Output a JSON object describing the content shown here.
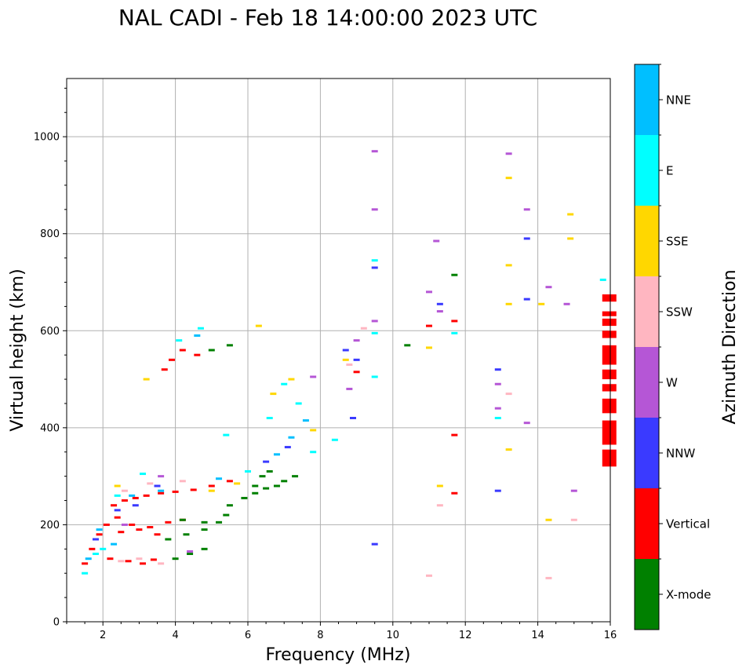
{
  "chart_data": {
    "type": "scatter",
    "title": "NAL CADI - Feb 18 14:00:00 2023 UTC",
    "xlabel": "Frequency (MHz)",
    "ylabel": "Virtual height (km)",
    "xlim": [
      1,
      16
    ],
    "ylim": [
      0,
      1120
    ],
    "x_ticks": [
      2,
      4,
      6,
      8,
      10,
      12,
      14,
      16
    ],
    "y_ticks": [
      0,
      200,
      400,
      600,
      800,
      1000
    ],
    "grid": true,
    "colorbar": {
      "label": "Azimuth Direction",
      "categories": [
        {
          "name": "X-mode",
          "color": "#008000"
        },
        {
          "name": "Vertical",
          "color": "#ff0000"
        },
        {
          "name": "NNW",
          "color": "#3a3aff"
        },
        {
          "name": "W",
          "color": "#b556d6"
        },
        {
          "name": "SSW",
          "color": "#ffb6c1"
        },
        {
          "name": "SSE",
          "color": "#ffd700"
        },
        {
          "name": "E",
          "color": "#00ffff"
        },
        {
          "name": "NNE",
          "color": "#00bfff"
        }
      ]
    },
    "series": [
      {
        "name": "Vertical",
        "points": [
          [
            1.5,
            120
          ],
          [
            1.7,
            150
          ],
          [
            1.9,
            180
          ],
          [
            2.1,
            200
          ],
          [
            2.3,
            240
          ],
          [
            2.6,
            250
          ],
          [
            2.9,
            255
          ],
          [
            3.2,
            260
          ],
          [
            3.6,
            265
          ],
          [
            4,
            268
          ],
          [
            4.5,
            272
          ],
          [
            5,
            280
          ],
          [
            5.5,
            290
          ],
          [
            2.4,
            215
          ],
          [
            2.8,
            200
          ],
          [
            3.3,
            195
          ],
          [
            3.8,
            205
          ],
          [
            4.2,
            210
          ],
          [
            2.5,
            185
          ],
          [
            3.0,
            190
          ],
          [
            3.5,
            180
          ],
          [
            2.2,
            130
          ],
          [
            2.7,
            125
          ],
          [
            3.1,
            120
          ],
          [
            3.4,
            128
          ],
          [
            3.7,
            520
          ],
          [
            3.9,
            540
          ],
          [
            4.2,
            560
          ],
          [
            4.6,
            550
          ],
          [
            11.0,
            610
          ],
          [
            11.7,
            620
          ],
          [
            11.7,
            385
          ],
          [
            11.7,
            265
          ],
          [
            9.0,
            515
          ]
        ]
      },
      {
        "name": "X-mode",
        "points": [
          [
            4.0,
            130
          ],
          [
            4.4,
            140
          ],
          [
            4.8,
            150
          ],
          [
            3.8,
            170
          ],
          [
            4.3,
            180
          ],
          [
            4.8,
            190
          ],
          [
            5.2,
            205
          ],
          [
            5.4,
            220
          ],
          [
            4.2,
            210
          ],
          [
            4.8,
            205
          ],
          [
            5.5,
            240
          ],
          [
            5.9,
            255
          ],
          [
            6.2,
            280
          ],
          [
            6.4,
            300
          ],
          [
            6.6,
            310
          ],
          [
            6.8,
            280
          ],
          [
            7.0,
            290
          ],
          [
            7.3,
            300
          ],
          [
            5.0,
            560
          ],
          [
            5.5,
            570
          ],
          [
            6.2,
            265
          ],
          [
            6.5,
            275
          ],
          [
            10.4,
            570
          ],
          [
            11.7,
            715
          ]
        ]
      },
      {
        "name": "NNW",
        "points": [
          [
            1.8,
            170
          ],
          [
            2.4,
            230
          ],
          [
            2.9,
            240
          ],
          [
            3.5,
            280
          ],
          [
            6.5,
            330
          ],
          [
            7.1,
            360
          ],
          [
            8.7,
            560
          ],
          [
            8.9,
            420
          ],
          [
            9.0,
            540
          ],
          [
            9.5,
            160
          ],
          [
            9.5,
            730
          ],
          [
            11.3,
            655
          ],
          [
            12.9,
            520
          ],
          [
            12.9,
            270
          ],
          [
            13.7,
            665
          ],
          [
            13.7,
            790
          ]
        ]
      },
      {
        "name": "W",
        "points": [
          [
            2.6,
            200
          ],
          [
            3.6,
            300
          ],
          [
            4.4,
            145
          ],
          [
            7.8,
            505
          ],
          [
            8.8,
            480
          ],
          [
            9.0,
            580
          ],
          [
            9.5,
            970
          ],
          [
            9.5,
            850
          ],
          [
            9.5,
            620
          ],
          [
            11.0,
            680
          ],
          [
            11.2,
            785
          ],
          [
            11.3,
            640
          ],
          [
            12.9,
            490
          ],
          [
            12.9,
            440
          ],
          [
            13.2,
            965
          ],
          [
            13.7,
            850
          ],
          [
            13.7,
            410
          ],
          [
            14.3,
            690
          ],
          [
            14.8,
            655
          ],
          [
            15.0,
            270
          ]
        ]
      },
      {
        "name": "SSW",
        "points": [
          [
            2.5,
            125
          ],
          [
            3.0,
            130
          ],
          [
            3.6,
            120
          ],
          [
            2.6,
            270
          ],
          [
            3.3,
            285
          ],
          [
            4.2,
            290
          ],
          [
            8.8,
            530
          ],
          [
            9.2,
            605
          ],
          [
            11.0,
            95
          ],
          [
            11.3,
            240
          ],
          [
            13.2,
            470
          ],
          [
            14.3,
            90
          ],
          [
            15.0,
            210
          ]
        ]
      },
      {
        "name": "SSE",
        "points": [
          [
            2.4,
            280
          ],
          [
            3.2,
            500
          ],
          [
            5.0,
            270
          ],
          [
            5.7,
            285
          ],
          [
            6.3,
            610
          ],
          [
            6.7,
            470
          ],
          [
            7.2,
            500
          ],
          [
            7.8,
            395
          ],
          [
            8.7,
            540
          ],
          [
            11.0,
            565
          ],
          [
            11.3,
            280
          ],
          [
            13.2,
            915
          ],
          [
            13.2,
            735
          ],
          [
            13.2,
            655
          ],
          [
            13.2,
            355
          ],
          [
            14.3,
            210
          ],
          [
            14.1,
            655
          ],
          [
            14.9,
            840
          ],
          [
            14.9,
            790
          ]
        ]
      },
      {
        "name": "E",
        "points": [
          [
            1.5,
            100
          ],
          [
            1.8,
            140
          ],
          [
            2.0,
            150
          ],
          [
            2.4,
            260
          ],
          [
            3.1,
            305
          ],
          [
            4.1,
            580
          ],
          [
            4.7,
            605
          ],
          [
            5.4,
            385
          ],
          [
            6.0,
            310
          ],
          [
            6.6,
            420
          ],
          [
            7.0,
            490
          ],
          [
            7.4,
            450
          ],
          [
            7.8,
            350
          ],
          [
            8.4,
            375
          ],
          [
            9.5,
            745
          ],
          [
            9.5,
            595
          ],
          [
            9.5,
            505
          ],
          [
            11.7,
            595
          ],
          [
            12.9,
            420
          ],
          [
            15.8,
            705
          ]
        ]
      },
      {
        "name": "NNE",
        "points": [
          [
            1.6,
            130
          ],
          [
            1.9,
            190
          ],
          [
            2.3,
            160
          ],
          [
            2.8,
            260
          ],
          [
            3.6,
            270
          ],
          [
            4.6,
            590
          ],
          [
            5.2,
            295
          ],
          [
            6.8,
            345
          ],
          [
            7.2,
            380
          ],
          [
            7.6,
            415
          ]
        ]
      }
    ],
    "vertical_streak": {
      "x": 15.8,
      "ranges": [
        [
          320,
          355
        ],
        [
          365,
          415
        ],
        [
          430,
          460
        ],
        [
          475,
          490
        ],
        [
          500,
          520
        ],
        [
          530,
          570
        ],
        [
          585,
          600
        ],
        [
          610,
          625
        ],
        [
          630,
          640
        ],
        [
          660,
          675
        ]
      ]
    }
  }
}
